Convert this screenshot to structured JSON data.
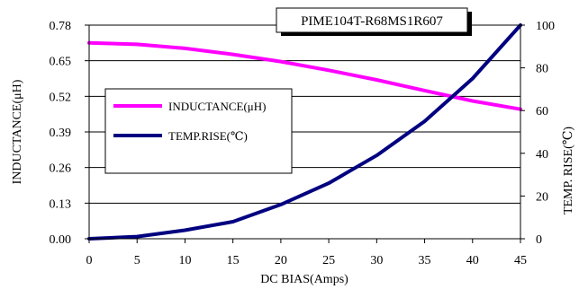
{
  "chart_data": {
    "type": "line",
    "title": "PIME104T-R68MS1R607",
    "xlabel": "DC BIAS(Amps)",
    "ylabel_left": "INDUCTANCE(μH)",
    "ylabel_right": "TEMP. RISE(℃)",
    "x": [
      0,
      5,
      10,
      15,
      20,
      25,
      30,
      35,
      40,
      45
    ],
    "x_ticks": [
      "0",
      "5",
      "10",
      "15",
      "20",
      "25",
      "30",
      "35",
      "40",
      "45"
    ],
    "xlim": [
      0,
      45
    ],
    "ylim_left": [
      0,
      0.78
    ],
    "y_left_ticks": [
      "0.00",
      "0.13",
      "0.26",
      "0.39",
      "0.52",
      "0.65",
      "0.78"
    ],
    "ylim_right": [
      0,
      100
    ],
    "y_right_ticks": [
      "0",
      "20",
      "40",
      "60",
      "80",
      "100"
    ],
    "grid": "horizontal",
    "legend_position": "left-center",
    "series": [
      {
        "name": "INDUCTANCE(μH)",
        "axis": "left",
        "color": "#ff00ff",
        "values": [
          0.715,
          0.71,
          0.695,
          0.673,
          0.647,
          0.615,
          0.58,
          0.541,
          0.503,
          0.473
        ]
      },
      {
        "name": "TEMP.RISE(℃)",
        "axis": "right",
        "color": "#000080",
        "values": [
          0,
          1,
          4,
          8,
          16,
          26,
          39,
          55,
          75,
          100
        ]
      }
    ]
  }
}
